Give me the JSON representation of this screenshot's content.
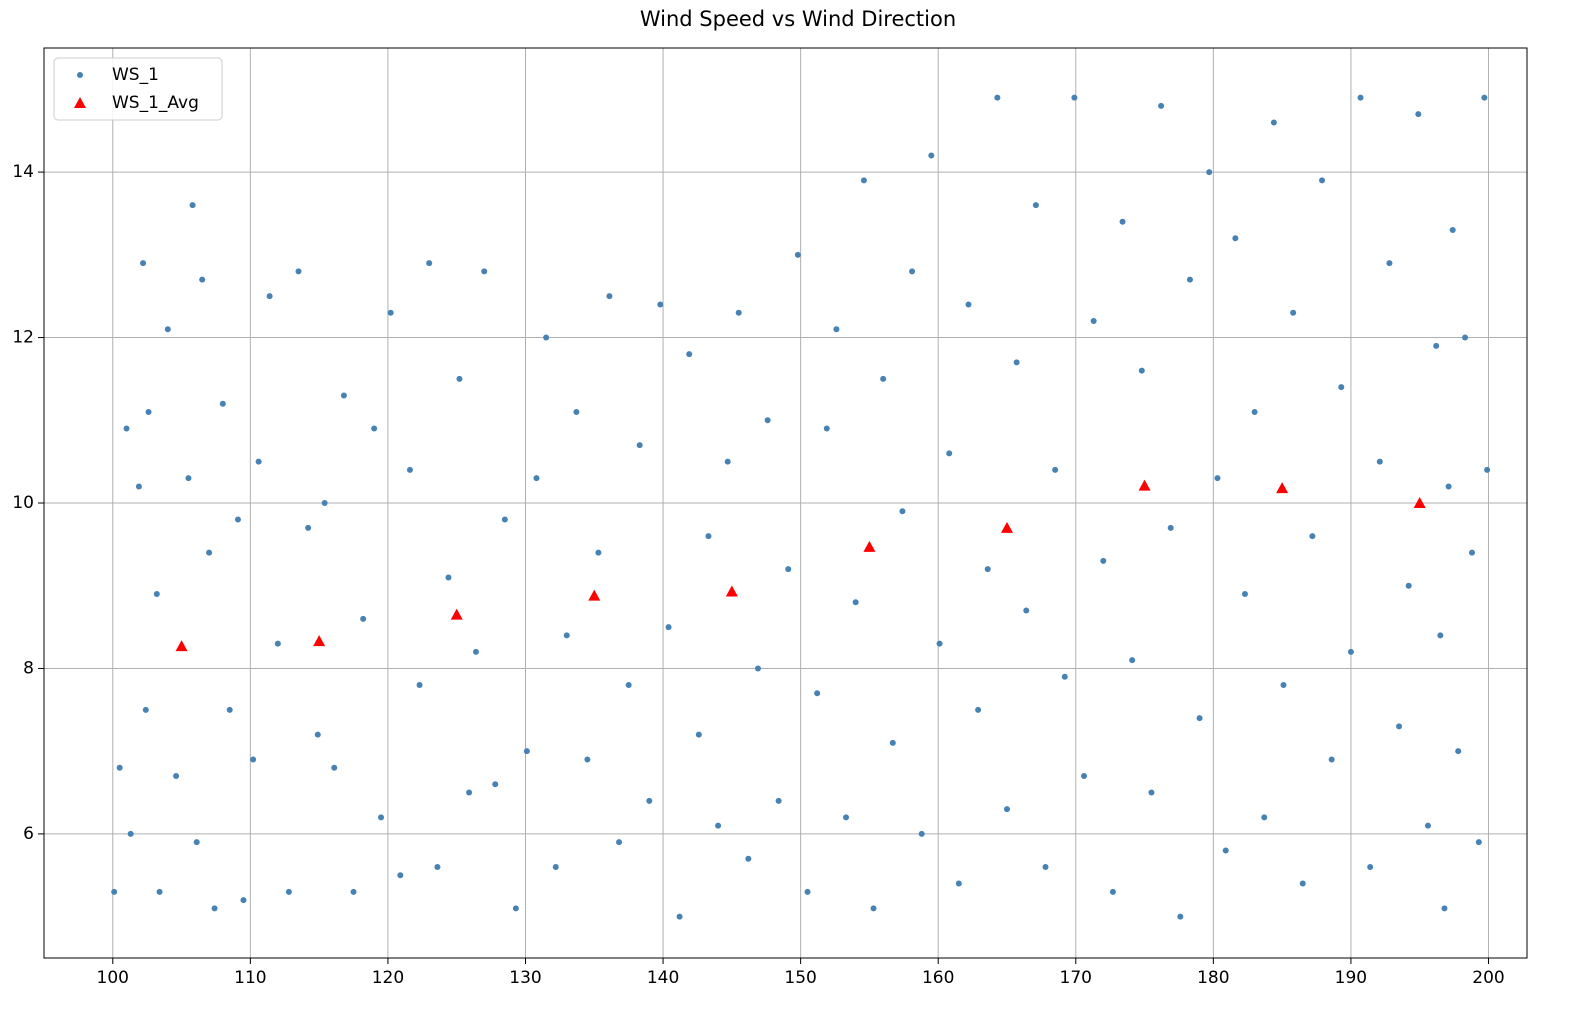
{
  "chart_data": {
    "type": "scatter",
    "title": "Wind Speed vs Wind Direction",
    "xlim": [
      95,
      202.8
    ],
    "ylim": [
      4.5,
      15.5
    ],
    "xticks": [
      100,
      110,
      120,
      130,
      140,
      150,
      160,
      170,
      180,
      190,
      200
    ],
    "yticks": [
      6,
      8,
      10,
      12,
      14
    ],
    "grid": true,
    "legend": "upper-left",
    "series": [
      {
        "name": "WS_1",
        "color": "#4682b4",
        "marker": "circle",
        "x": [
          100.1,
          100.5,
          101.0,
          101.3,
          101.9,
          102.2,
          102.4,
          102.6,
          103.2,
          103.4,
          104.0,
          104.6,
          105.5,
          105.8,
          106.1,
          106.5,
          107.0,
          107.4,
          108.0,
          108.5,
          109.1,
          109.5,
          110.2,
          110.6,
          111.4,
          112.0,
          112.8,
          113.5,
          114.2,
          114.9,
          115.4,
          116.1,
          116.8,
          117.5,
          118.2,
          119.0,
          119.5,
          120.2,
          120.9,
          121.6,
          122.3,
          123.0,
          123.6,
          124.4,
          125.2,
          125.9,
          126.4,
          127.0,
          127.8,
          128.5,
          129.3,
          130.1,
          130.8,
          131.5,
          132.2,
          133.0,
          133.7,
          134.5,
          135.3,
          136.1,
          136.8,
          137.5,
          138.3,
          139.0,
          139.8,
          140.4,
          141.2,
          141.9,
          142.6,
          143.3,
          144.0,
          144.7,
          145.5,
          146.2,
          146.9,
          147.6,
          148.4,
          149.1,
          149.8,
          150.5,
          151.2,
          151.9,
          152.6,
          153.3,
          154.0,
          154.6,
          155.3,
          156.0,
          156.7,
          157.4,
          158.1,
          158.8,
          159.5,
          160.1,
          160.8,
          161.5,
          162.2,
          162.9,
          163.6,
          164.3,
          165.0,
          165.7,
          166.4,
          167.1,
          167.8,
          168.5,
          169.2,
          169.9,
          170.6,
          171.3,
          172.0,
          172.7,
          173.4,
          174.1,
          174.8,
          175.5,
          176.2,
          176.9,
          177.6,
          178.3,
          179.0,
          179.7,
          180.3,
          180.9,
          181.6,
          182.3,
          183.0,
          183.7,
          184.4,
          185.1,
          185.8,
          186.5,
          187.2,
          187.9,
          188.6,
          189.3,
          190.0,
          190.7,
          191.4,
          192.1,
          192.8,
          193.5,
          194.2,
          194.9,
          195.6,
          196.2,
          196.5,
          196.8,
          197.1,
          197.4,
          197.8,
          198.3,
          198.8,
          199.3,
          199.7,
          199.9
        ],
        "values": [
          5.3,
          6.8,
          10.9,
          6.0,
          10.2,
          12.9,
          7.5,
          11.1,
          8.9,
          5.3,
          12.1,
          6.7,
          10.3,
          13.6,
          5.9,
          12.7,
          9.4,
          5.1,
          11.2,
          7.5,
          9.8,
          5.2,
          6.9,
          10.5,
          12.5,
          8.3,
          5.3,
          12.8,
          9.7,
          7.2,
          10.0,
          6.8,
          11.3,
          5.3,
          8.6,
          10.9,
          6.2,
          12.3,
          5.5,
          10.4,
          7.8,
          12.9,
          5.6,
          9.1,
          11.5,
          6.5,
          8.2,
          12.8,
          6.6,
          9.8,
          5.1,
          7.0,
          10.3,
          12.0,
          5.6,
          8.4,
          11.1,
          6.9,
          9.4,
          12.5,
          5.9,
          7.8,
          10.7,
          6.4,
          12.4,
          8.5,
          5.0,
          11.8,
          7.2,
          9.6,
          6.1,
          10.5,
          12.3,
          5.7,
          8.0,
          11.0,
          6.4,
          9.2,
          13.0,
          5.3,
          7.7,
          10.9,
          12.1,
          6.2,
          8.8,
          13.9,
          5.1,
          11.5,
          7.1,
          9.9,
          12.8,
          6.0,
          14.2,
          8.3,
          10.6,
          5.4,
          12.4,
          7.5,
          9.2,
          14.9,
          6.3,
          11.7,
          8.7,
          13.6,
          5.6,
          10.4,
          7.9,
          14.9,
          6.7,
          12.2,
          9.3,
          5.3,
          13.4,
          8.1,
          11.6,
          6.5,
          14.8,
          9.7,
          5.0,
          12.7,
          7.4,
          14.0,
          10.3,
          5.8,
          13.2,
          8.9,
          11.1,
          6.2,
          14.6,
          7.8,
          12.3,
          5.4,
          9.6,
          13.9,
          6.9,
          11.4,
          8.2,
          14.9,
          5.6,
          10.5,
          12.9,
          7.3,
          9.0,
          14.7,
          6.1,
          11.9,
          8.4,
          5.1,
          10.2,
          13.3,
          7.0,
          12.0,
          9.4,
          5.9,
          14.9,
          10.4
        ]
      },
      {
        "name": "WS_1_Avg",
        "color": "#ff0000",
        "marker": "triangle",
        "x": [
          105,
          115,
          125,
          135,
          145,
          155,
          165,
          175,
          185,
          195
        ],
        "values": [
          8.27,
          8.33,
          8.65,
          8.88,
          8.93,
          9.47,
          9.7,
          10.21,
          10.18,
          10.0
        ]
      }
    ]
  }
}
